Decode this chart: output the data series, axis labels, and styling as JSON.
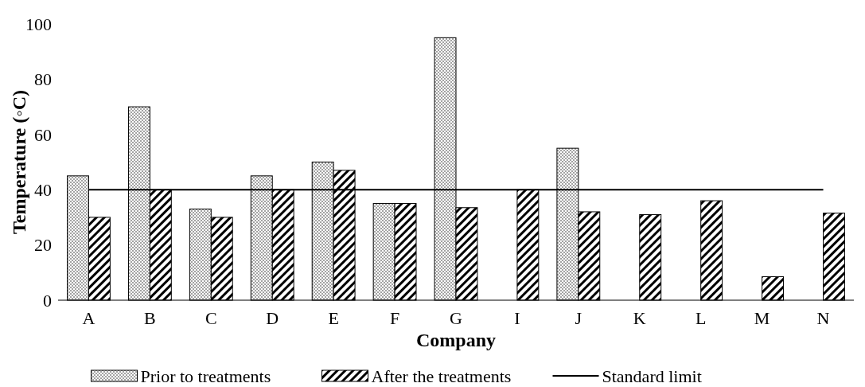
{
  "chart_data": {
    "type": "bar",
    "xlabel": "Company",
    "ylabel": "Temperature (◦C)",
    "categories": [
      "A",
      "B",
      "C",
      "D",
      "E",
      "F",
      "G",
      "I",
      "J",
      "K",
      "L",
      "M",
      "N"
    ],
    "series": [
      {
        "name": "Prior to treatments",
        "color": "#000000",
        "values": [
          45,
          70,
          33,
          45,
          50,
          35,
          95,
          null,
          55,
          null,
          null,
          null,
          null
        ]
      },
      {
        "name": "After the treatments",
        "color": "#000000",
        "values": [
          30,
          40,
          30,
          40,
          47,
          35,
          33.5,
          40,
          32,
          31,
          36,
          8.5,
          31.5
        ]
      },
      {
        "name": "Standard limit",
        "type": "line",
        "color": "#000000",
        "values": [
          40,
          40,
          40,
          40,
          40,
          40,
          40,
          40,
          40,
          40,
          40,
          40,
          40
        ]
      }
    ],
    "ylim": [
      0,
      100
    ],
    "yticks": [
      0,
      20,
      40,
      60,
      80,
      100
    ],
    "grid": false,
    "legend": "bottom"
  }
}
